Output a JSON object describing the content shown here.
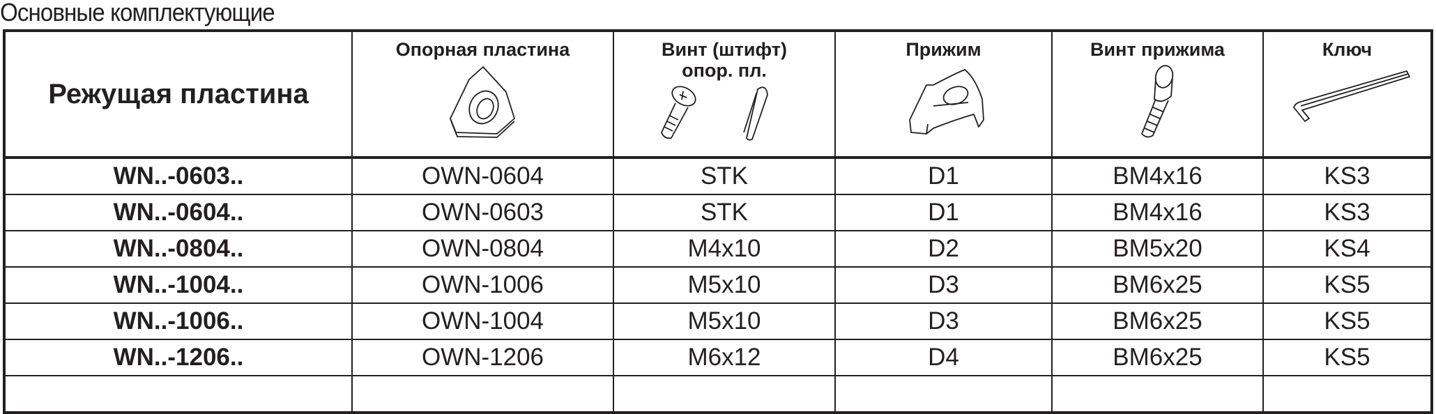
{
  "title": "Основные комплектующие",
  "headers": [
    "Режущая пластина",
    "Опорная пластина",
    "Винт (штифт) опор. пл.",
    "Прижим",
    "Винт прижима",
    "Ключ"
  ],
  "header_icons": [
    "support-plate-icon",
    "screw-and-pin-icon",
    "clamp-icon",
    "clamp-screw-icon",
    "hex-key-icon"
  ],
  "rows": [
    [
      "WN..-0603..",
      "OWN-0604",
      "STK",
      "D1",
      "BM4x16",
      "KS3"
    ],
    [
      "WN..-0604..",
      "OWN-0603",
      "STK",
      "D1",
      "BM4x16",
      "KS3"
    ],
    [
      "WN..-0804..",
      "OWN-0804",
      "M4x10",
      "D2",
      "BM5x20",
      "KS4"
    ],
    [
      "WN..-1004..",
      "OWN-1006",
      "M5x10",
      "D3",
      "BM6x25",
      "KS5"
    ],
    [
      "WN..-1006..",
      "OWN-1004",
      "M5x10",
      "D3",
      "BM6x25",
      "KS5"
    ],
    [
      "WN..-1206..",
      "OWN-1206",
      "M6x12",
      "D4",
      "BM6x25",
      "KS5"
    ],
    [
      "",
      "",
      "",
      "",
      "",
      ""
    ]
  ]
}
